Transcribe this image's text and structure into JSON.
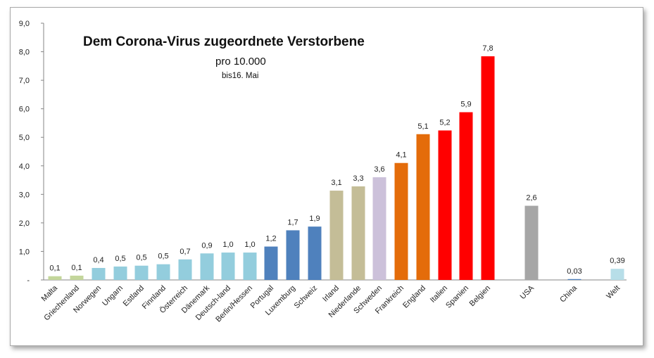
{
  "chart_data": {
    "type": "bar",
    "title": "Dem Corona-Virus zugeordnete Verstorbene",
    "subtitle": "pro 10.000",
    "note": "bis16. Mai",
    "ylim": [
      0,
      9
    ],
    "yticks": [
      "-",
      "1,0",
      "2,0",
      "3,0",
      "4,0",
      "5,0",
      "6,0",
      "7,0",
      "8,0",
      "9,0"
    ],
    "grid": false,
    "legend": "none",
    "categories": [
      "Malta",
      "Griechenland",
      "Norwegen",
      "Ungarn",
      "Estland",
      "Finnland",
      "Österreich",
      "Dänemark",
      "Deutsch-land",
      "Berlin/Hessen",
      "Portugal",
      "Luxemburg",
      "Schweiz",
      "Irland",
      "Niederlande",
      "Schweden",
      "Frankreich",
      "England",
      "Italien",
      "Spanien",
      "Belgien",
      "USA",
      "China",
      "Welt"
    ],
    "values": [
      0.13,
      0.15,
      0.42,
      0.47,
      0.5,
      0.55,
      0.72,
      0.93,
      0.96,
      0.96,
      1.17,
      1.74,
      1.87,
      3.13,
      3.28,
      3.6,
      4.1,
      5.11,
      5.24,
      5.88,
      7.84,
      2.6,
      0.03,
      0.39
    ],
    "labels": [
      "0,1",
      "0,1",
      "0,4",
      "0,5",
      "0,5",
      "0,5",
      "0,7",
      "0,9",
      "1,0",
      "1,0",
      "1,2",
      "1,7",
      "1,9",
      "3,1",
      "3,3",
      "3,6",
      "4,1",
      "5,1",
      "5,2",
      "5,9",
      "7,8",
      "2,6",
      "0,03",
      "0,39"
    ],
    "colors": [
      "#c3d69b",
      "#c3d69b",
      "#93cddd",
      "#93cddd",
      "#93cddd",
      "#93cddd",
      "#93cddd",
      "#93cddd",
      "#93cddd",
      "#93cddd",
      "#4f81bd",
      "#4f81bd",
      "#4f81bd",
      "#c4bd97",
      "#c4bd97",
      "#ccc1da",
      "#e46c0a",
      "#e46c0a",
      "#ff0000",
      "#ff0000",
      "#ff0000",
      "#a6a6a6",
      "#4f81bd",
      "#b7dee8"
    ]
  }
}
